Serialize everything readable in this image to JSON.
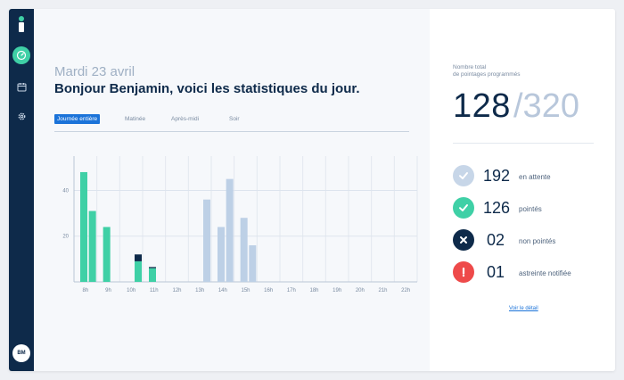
{
  "sidebar": {
    "avatar_initials": "BM",
    "icons": [
      "dashboard-icon",
      "calendar-icon",
      "settings-icon"
    ],
    "accent": "#3fd0a6",
    "background": "#0e2a4a"
  },
  "header": {
    "date": "Mardi 23 avril",
    "greeting": "Bonjour Benjamin, voici les statistiques du jour."
  },
  "tabs": [
    {
      "label": "Journée entière",
      "active": true
    },
    {
      "label": "Matinée",
      "active": false
    },
    {
      "label": "Après-midi",
      "active": false
    },
    {
      "label": "Soir",
      "active": false
    }
  ],
  "chart_data": {
    "type": "bar",
    "categories": [
      "8h",
      "9h",
      "10h",
      "11h",
      "12h",
      "13h",
      "14h",
      "15h",
      "16h",
      "17h",
      "18h",
      "19h",
      "20h",
      "21h",
      "22h"
    ],
    "ylim": [
      0,
      55
    ],
    "yticks": [
      20,
      40
    ],
    "series": [
      {
        "color": "#3fd0a6",
        "points": [
          {
            "x": "8h",
            "slot": 0,
            "value": 48
          },
          {
            "x": "8h",
            "slot": 1,
            "value": 31
          },
          {
            "x": "9h",
            "slot": 0,
            "value": 24
          },
          {
            "x": "10h",
            "slot": 1,
            "value": 9
          },
          {
            "x": "11h",
            "slot": 0,
            "value": 6
          }
        ]
      },
      {
        "color": "#0e2a4a",
        "points": [
          {
            "x": "10h",
            "slot": 1,
            "value": 3,
            "base": 9
          },
          {
            "x": "11h",
            "slot": 0,
            "value": 0.5,
            "base": 6
          }
        ]
      },
      {
        "color": "#bdd0e6",
        "points": [
          {
            "x": "13h",
            "slot": 1,
            "value": 36
          },
          {
            "x": "14h",
            "slot": 0,
            "value": 24
          },
          {
            "x": "14h",
            "slot": 1,
            "value": 45
          },
          {
            "x": "15h",
            "slot": 0,
            "value": 28
          },
          {
            "x": "15h",
            "slot": 1,
            "value": 16
          }
        ]
      }
    ],
    "grid": true
  },
  "summary": {
    "label_line1": "Nombre total",
    "label_line2": "de pointages programmés",
    "total": "128",
    "planned": "/320"
  },
  "stats": [
    {
      "value": "192",
      "label": "en attente",
      "color": "#c7d6e8",
      "icon": "check-icon"
    },
    {
      "value": "126",
      "label": "pointés",
      "color": "#3fd0a6",
      "icon": "check-icon"
    },
    {
      "value": "02",
      "label": "non pointés",
      "color": "#0e2a4a",
      "icon": "cross-icon"
    },
    {
      "value": "01",
      "label": "astreinte notifiée",
      "color": "#ee4a4a",
      "icon": "alert-icon"
    }
  ],
  "detail_link": "Voir le détail"
}
